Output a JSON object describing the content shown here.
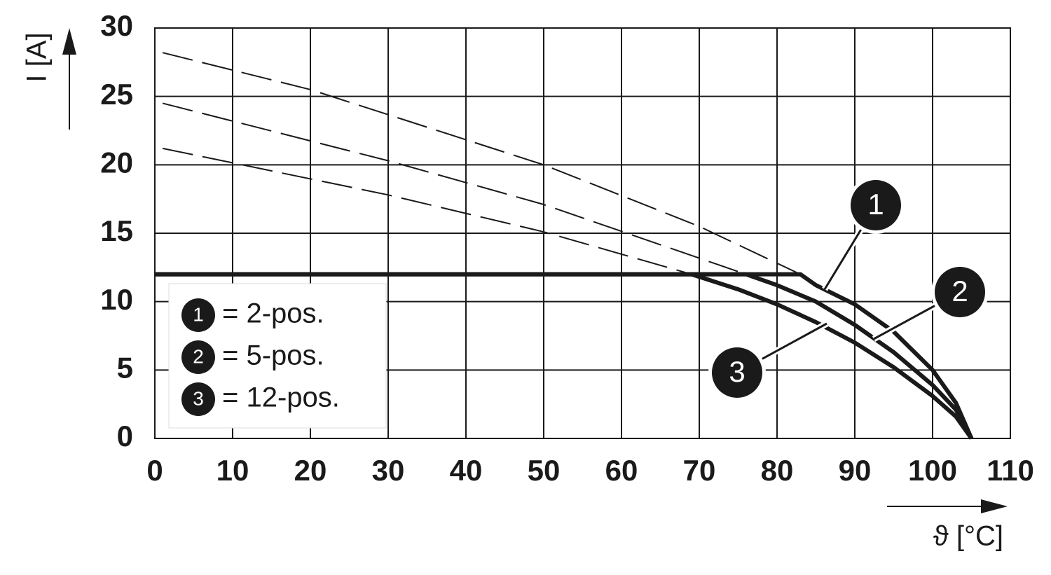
{
  "chart_data": {
    "type": "line",
    "x_label": "ϑ [°C]",
    "y_label": "I [A]",
    "xlim": [
      0,
      110
    ],
    "xticks": [
      0,
      10,
      20,
      30,
      40,
      50,
      60,
      70,
      80,
      90,
      100,
      110
    ],
    "ylim": [
      0,
      30
    ],
    "yticks": [
      0,
      5,
      10,
      15,
      20,
      25,
      30
    ],
    "grid": true,
    "legend": "lower left",
    "series": [
      {
        "key": "1",
        "name": "= 2-pos.",
        "color": "#1a1a1a",
        "x": [
          0,
          83,
          85,
          90,
          95,
          100,
          103,
          105
        ],
        "values": [
          12,
          12,
          11.2,
          9.8,
          7.8,
          5,
          2.6,
          0
        ],
        "dashed_x": [
          1,
          20,
          50,
          70,
          83
        ],
        "dashed_values": [
          28.2,
          25.5,
          20,
          15.5,
          12
        ]
      },
      {
        "key": "2",
        "name": "= 5-pos.",
        "color": "#1a1a1a",
        "x": [
          0,
          76,
          80,
          85,
          90,
          95,
          100,
          103,
          105
        ],
        "values": [
          12,
          12,
          11.2,
          10,
          8.3,
          6.3,
          3.9,
          2.1,
          0
        ],
        "dashed_x": [
          1,
          30,
          50,
          76
        ],
        "dashed_values": [
          24.5,
          20.3,
          17.1,
          12
        ]
      },
      {
        "key": "3",
        "name": "= 12-pos.",
        "color": "#1a1a1a",
        "x": [
          0,
          69,
          75,
          80,
          85,
          90,
          95,
          100,
          103,
          105
        ],
        "values": [
          12,
          12,
          10.9,
          9.8,
          8.5,
          7,
          5.2,
          3.1,
          1.6,
          0
        ],
        "dashed_x": [
          1,
          30,
          50,
          69
        ],
        "dashed_values": [
          21.2,
          17.8,
          15.1,
          12
        ]
      }
    ]
  }
}
